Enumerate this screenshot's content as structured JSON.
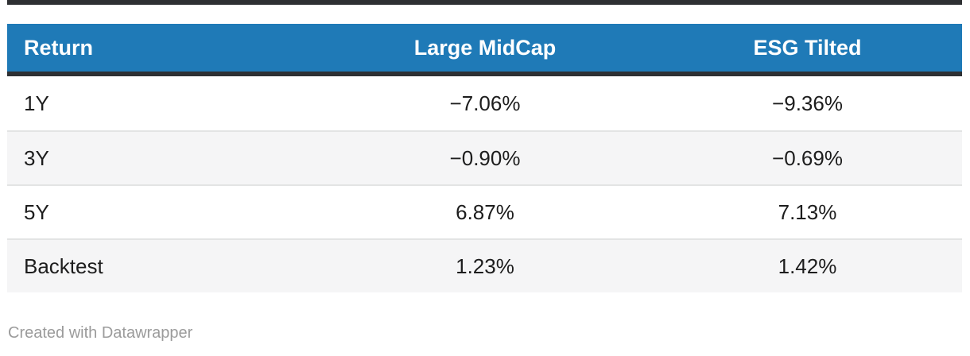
{
  "colors": {
    "header_bg": "#1f7ab7",
    "header_text": "#ffffff",
    "dark_rule": "#2e3033",
    "row_alt_bg": "#f5f5f6",
    "row_separator": "#e3e4e4",
    "cell_text": "#1d1d1d",
    "credit_text": "#9b9b9b"
  },
  "table": {
    "columns": [
      {
        "label": "Return",
        "align": "left"
      },
      {
        "label": "Large MidCap",
        "align": "center"
      },
      {
        "label": "ESG Tilted",
        "align": "center"
      }
    ],
    "rows": [
      {
        "label": "1Y",
        "large_midcap": "−7.06%",
        "esg_tilted": "−9.36%"
      },
      {
        "label": "3Y",
        "large_midcap": "−0.90%",
        "esg_tilted": "−0.69%"
      },
      {
        "label": "5Y",
        "large_midcap": "6.87%",
        "esg_tilted": "7.13%"
      },
      {
        "label": "Backtest",
        "large_midcap": "1.23%",
        "esg_tilted": "1.42%"
      }
    ]
  },
  "footer": {
    "credit": "Created with Datawrapper"
  },
  "chart_data": {
    "type": "table",
    "title": "",
    "columns": [
      "Return",
      "Large MidCap",
      "ESG Tilted"
    ],
    "categories": [
      "1Y",
      "3Y",
      "5Y",
      "Backtest"
    ],
    "series": [
      {
        "name": "Large MidCap",
        "values": [
          -7.06,
          -0.9,
          6.87,
          1.23
        ]
      },
      {
        "name": "ESG Tilted",
        "values": [
          -9.36,
          -0.69,
          7.13,
          1.42
        ]
      }
    ],
    "value_unit": "%",
    "layout_hints": {
      "header_background": "#1f7ab7",
      "alternating_row_shading": true,
      "numeric_columns_centered": true,
      "credit": "Created with Datawrapper"
    }
  }
}
